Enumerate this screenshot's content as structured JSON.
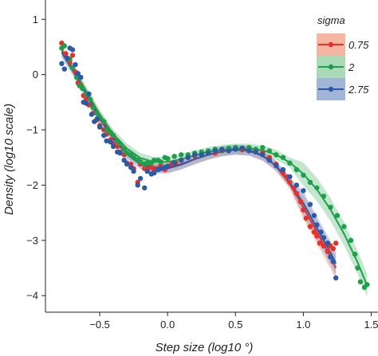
{
  "chart_data": {
    "type": "scatter",
    "xlabel": "Step size (log10 °)",
    "ylabel": "Density (log10 scale)",
    "xlim": [
      -0.9,
      1.55
    ],
    "ylim": [
      -4.3,
      1.35
    ],
    "x_ticks": [
      {
        "value": -0.5,
        "label": "−0.5"
      },
      {
        "value": 0.0,
        "label": "0.0"
      },
      {
        "value": 0.5,
        "label": "0.5"
      },
      {
        "value": 1.0,
        "label": "1.0"
      },
      {
        "value": 1.5,
        "label": "1.5"
      }
    ],
    "y_ticks": [
      {
        "value": 1,
        "label": "1"
      },
      {
        "value": 0,
        "label": "0"
      },
      {
        "value": -1,
        "label": "−1"
      },
      {
        "value": -2,
        "label": "−2"
      },
      {
        "value": -3,
        "label": "−3"
      },
      {
        "value": -4,
        "label": "−4"
      }
    ],
    "grid": false,
    "legend": {
      "title": "sigma",
      "position": "top-right"
    },
    "series": [
      {
        "name": "0.75",
        "color": "#e8302a",
        "band_color": "#f2a48a",
        "points": [
          [
            -0.78,
            0.57
          ],
          [
            -0.75,
            0.38
          ],
          [
            -0.72,
            0.22
          ],
          [
            -0.7,
            0.35
          ],
          [
            -0.68,
            0.05
          ],
          [
            -0.66,
            -0.15
          ],
          [
            -0.64,
            -0.2
          ],
          [
            -0.62,
            -0.38
          ],
          [
            -0.6,
            -0.45
          ],
          [
            -0.58,
            -0.55
          ],
          [
            -0.55,
            -0.7
          ],
          [
            -0.52,
            -0.82
          ],
          [
            -0.5,
            -0.92
          ],
          [
            -0.47,
            -1.0
          ],
          [
            -0.45,
            -1.08
          ],
          [
            -0.42,
            -1.18
          ],
          [
            -0.4,
            -1.25
          ],
          [
            -0.37,
            -1.3
          ],
          [
            -0.35,
            -1.4
          ],
          [
            -0.32,
            -1.45
          ],
          [
            -0.3,
            -1.6
          ],
          [
            -0.27,
            -1.62
          ],
          [
            -0.25,
            -1.7
          ],
          [
            -0.22,
            -1.95
          ],
          [
            -0.2,
            -1.62
          ],
          [
            -0.17,
            -1.7
          ],
          [
            -0.15,
            -1.72
          ],
          [
            -0.12,
            -1.68
          ],
          [
            -0.1,
            -1.75
          ],
          [
            -0.07,
            -1.7
          ],
          [
            -0.05,
            -1.65
          ],
          [
            -0.02,
            -1.72
          ],
          [
            0.0,
            -1.66
          ],
          [
            0.03,
            -1.62
          ],
          [
            0.06,
            -1.6
          ],
          [
            0.1,
            -1.55
          ],
          [
            0.15,
            -1.5
          ],
          [
            0.2,
            -1.47
          ],
          [
            0.25,
            -1.45
          ],
          [
            0.3,
            -1.42
          ],
          [
            0.35,
            -1.42
          ],
          [
            0.4,
            -1.38
          ],
          [
            0.45,
            -1.37
          ],
          [
            0.5,
            -1.35
          ],
          [
            0.55,
            -1.36
          ],
          [
            0.6,
            -1.34
          ],
          [
            0.65,
            -1.38
          ],
          [
            0.7,
            -1.42
          ],
          [
            0.75,
            -1.5
          ],
          [
            0.8,
            -1.62
          ],
          [
            0.85,
            -1.78
          ],
          [
            0.88,
            -1.85
          ],
          [
            0.9,
            -1.95
          ],
          [
            0.93,
            -2.05
          ],
          [
            0.95,
            -2.15
          ],
          [
            0.98,
            -2.3
          ],
          [
            1.0,
            -2.45
          ],
          [
            1.02,
            -2.6
          ],
          [
            1.05,
            -2.75
          ],
          [
            1.08,
            -2.85
          ],
          [
            1.1,
            -2.92
          ],
          [
            1.12,
            -3.05
          ],
          [
            1.15,
            -3.1
          ],
          [
            1.18,
            -3.2
          ],
          [
            1.2,
            -3.1
          ],
          [
            1.22,
            -3.15
          ],
          [
            1.24,
            -3.05
          ]
        ],
        "fit": [
          [
            -0.78,
            0.45
          ],
          [
            -0.7,
            0.12
          ],
          [
            -0.6,
            -0.32
          ],
          [
            -0.5,
            -0.76
          ],
          [
            -0.4,
            -1.12
          ],
          [
            -0.3,
            -1.4
          ],
          [
            -0.2,
            -1.58
          ],
          [
            -0.1,
            -1.67
          ],
          [
            0.0,
            -1.68
          ],
          [
            0.1,
            -1.62
          ],
          [
            0.2,
            -1.53
          ],
          [
            0.3,
            -1.45
          ],
          [
            0.4,
            -1.39
          ],
          [
            0.5,
            -1.36
          ],
          [
            0.6,
            -1.37
          ],
          [
            0.7,
            -1.46
          ],
          [
            0.8,
            -1.66
          ],
          [
            0.9,
            -1.98
          ],
          [
            1.0,
            -2.4
          ],
          [
            1.1,
            -2.85
          ],
          [
            1.2,
            -3.3
          ],
          [
            1.24,
            -3.5
          ]
        ]
      },
      {
        "name": "2",
        "color": "#1ea04a",
        "band_color": "#95d1a5",
        "points": [
          [
            -0.78,
            0.48
          ],
          [
            -0.76,
            0.52
          ],
          [
            -0.74,
            0.3
          ],
          [
            -0.72,
            0.28
          ],
          [
            -0.7,
            0.12
          ],
          [
            -0.67,
            -0.05
          ],
          [
            -0.65,
            -0.2
          ],
          [
            -0.63,
            -0.25
          ],
          [
            -0.6,
            -0.35
          ],
          [
            -0.57,
            -0.45
          ],
          [
            -0.55,
            -0.6
          ],
          [
            -0.52,
            -0.7
          ],
          [
            -0.5,
            -0.78
          ],
          [
            -0.47,
            -0.85
          ],
          [
            -0.45,
            -1.0
          ],
          [
            -0.42,
            -1.05
          ],
          [
            -0.4,
            -1.1
          ],
          [
            -0.37,
            -1.2
          ],
          [
            -0.35,
            -1.25
          ],
          [
            -0.32,
            -1.35
          ],
          [
            -0.3,
            -1.42
          ],
          [
            -0.27,
            -1.45
          ],
          [
            -0.25,
            -1.5
          ],
          [
            -0.22,
            -1.55
          ],
          [
            -0.2,
            -1.58
          ],
          [
            -0.17,
            -1.62
          ],
          [
            -0.15,
            -1.6
          ],
          [
            -0.12,
            -1.6
          ],
          [
            -0.1,
            -1.55
          ],
          [
            -0.07,
            -1.55
          ],
          [
            -0.05,
            -1.58
          ],
          [
            -0.02,
            -1.5
          ],
          [
            0.0,
            -1.52
          ],
          [
            0.05,
            -1.48
          ],
          [
            0.1,
            -1.45
          ],
          [
            0.15,
            -1.45
          ],
          [
            0.2,
            -1.42
          ],
          [
            0.25,
            -1.4
          ],
          [
            0.3,
            -1.38
          ],
          [
            0.35,
            -1.35
          ],
          [
            0.4,
            -1.36
          ],
          [
            0.45,
            -1.33
          ],
          [
            0.5,
            -1.32
          ],
          [
            0.55,
            -1.33
          ],
          [
            0.6,
            -1.32
          ],
          [
            0.65,
            -1.35
          ],
          [
            0.7,
            -1.32
          ],
          [
            0.75,
            -1.38
          ],
          [
            0.8,
            -1.45
          ],
          [
            0.85,
            -1.5
          ],
          [
            0.9,
            -1.6
          ],
          [
            0.95,
            -1.72
          ],
          [
            1.0,
            -1.82
          ],
          [
            1.05,
            -1.95
          ],
          [
            1.1,
            -2.05
          ],
          [
            1.15,
            -2.2
          ],
          [
            1.2,
            -2.4
          ],
          [
            1.25,
            -2.55
          ],
          [
            1.3,
            -2.75
          ],
          [
            1.35,
            -3.0
          ],
          [
            1.38,
            -3.25
          ],
          [
            1.4,
            -3.5
          ],
          [
            1.42,
            -3.75
          ],
          [
            1.45,
            -3.85
          ],
          [
            1.47,
            -3.8
          ]
        ],
        "fit": [
          [
            -0.78,
            0.42
          ],
          [
            -0.7,
            0.12
          ],
          [
            -0.6,
            -0.3
          ],
          [
            -0.5,
            -0.72
          ],
          [
            -0.4,
            -1.08
          ],
          [
            -0.3,
            -1.34
          ],
          [
            -0.2,
            -1.51
          ],
          [
            -0.1,
            -1.58
          ],
          [
            0.0,
            -1.58
          ],
          [
            0.1,
            -1.53
          ],
          [
            0.2,
            -1.46
          ],
          [
            0.3,
            -1.4
          ],
          [
            0.4,
            -1.36
          ],
          [
            0.5,
            -1.34
          ],
          [
            0.6,
            -1.34
          ],
          [
            0.7,
            -1.37
          ],
          [
            0.8,
            -1.45
          ],
          [
            0.9,
            -1.59
          ],
          [
            1.0,
            -1.8
          ],
          [
            1.1,
            -2.08
          ],
          [
            1.2,
            -2.44
          ],
          [
            1.3,
            -2.88
          ],
          [
            1.4,
            -3.4
          ],
          [
            1.47,
            -3.82
          ]
        ]
      },
      {
        "name": "2.75",
        "color": "#2a5aa8",
        "band_color": "#8aa2d0",
        "points": [
          [
            -0.78,
            0.2
          ],
          [
            -0.76,
            0.1
          ],
          [
            -0.74,
            0.3
          ],
          [
            -0.72,
            0.48
          ],
          [
            -0.7,
            0.45
          ],
          [
            -0.68,
            0.18
          ],
          [
            -0.66,
            0.02
          ],
          [
            -0.64,
            -0.05
          ],
          [
            -0.62,
            -0.5
          ],
          [
            -0.6,
            -0.52
          ],
          [
            -0.58,
            -0.35
          ],
          [
            -0.56,
            -0.72
          ],
          [
            -0.54,
            -0.85
          ],
          [
            -0.52,
            -0.8
          ],
          [
            -0.5,
            -0.95
          ],
          [
            -0.47,
            -1.1
          ],
          [
            -0.45,
            -1.2
          ],
          [
            -0.42,
            -1.22
          ],
          [
            -0.4,
            -1.3
          ],
          [
            -0.37,
            -1.4
          ],
          [
            -0.35,
            -1.42
          ],
          [
            -0.32,
            -1.55
          ],
          [
            -0.3,
            -1.62
          ],
          [
            -0.27,
            -1.68
          ],
          [
            -0.25,
            -1.75
          ],
          [
            -0.22,
            -2.0
          ],
          [
            -0.2,
            -1.88
          ],
          [
            -0.17,
            -2.05
          ],
          [
            -0.15,
            -1.75
          ],
          [
            -0.12,
            -1.8
          ],
          [
            -0.1,
            -1.78
          ],
          [
            -0.07,
            -1.72
          ],
          [
            -0.05,
            -1.7
          ],
          [
            -0.02,
            -1.68
          ],
          [
            0.0,
            -1.66
          ],
          [
            0.05,
            -1.6
          ],
          [
            0.1,
            -1.55
          ],
          [
            0.15,
            -1.5
          ],
          [
            0.2,
            -1.45
          ],
          [
            0.25,
            -1.45
          ],
          [
            0.3,
            -1.42
          ],
          [
            0.35,
            -1.38
          ],
          [
            0.4,
            -1.35
          ],
          [
            0.45,
            -1.38
          ],
          [
            0.5,
            -1.35
          ],
          [
            0.55,
            -1.33
          ],
          [
            0.6,
            -1.38
          ],
          [
            0.65,
            -1.4
          ],
          [
            0.7,
            -1.45
          ],
          [
            0.75,
            -1.55
          ],
          [
            0.8,
            -1.65
          ],
          [
            0.85,
            -1.72
          ],
          [
            0.9,
            -1.85
          ],
          [
            0.95,
            -2.0
          ],
          [
            1.0,
            -2.1
          ],
          [
            1.05,
            -2.35
          ],
          [
            1.08,
            -2.55
          ],
          [
            1.1,
            -2.72
          ],
          [
            1.13,
            -2.85
          ],
          [
            1.15,
            -2.95
          ],
          [
            1.18,
            -3.05
          ],
          [
            1.2,
            -3.3
          ],
          [
            1.22,
            -3.38
          ],
          [
            1.24,
            -3.68
          ]
        ],
        "fit": [
          [
            -0.78,
            0.4
          ],
          [
            -0.7,
            0.08
          ],
          [
            -0.6,
            -0.36
          ],
          [
            -0.5,
            -0.8
          ],
          [
            -0.4,
            -1.16
          ],
          [
            -0.3,
            -1.44
          ],
          [
            -0.2,
            -1.62
          ],
          [
            -0.1,
            -1.7
          ],
          [
            0.0,
            -1.7
          ],
          [
            0.1,
            -1.63
          ],
          [
            0.2,
            -1.53
          ],
          [
            0.3,
            -1.45
          ],
          [
            0.4,
            -1.39
          ],
          [
            0.5,
            -1.36
          ],
          [
            0.6,
            -1.38
          ],
          [
            0.7,
            -1.47
          ],
          [
            0.8,
            -1.65
          ],
          [
            0.9,
            -1.95
          ],
          [
            1.0,
            -2.33
          ],
          [
            1.1,
            -2.78
          ],
          [
            1.2,
            -3.22
          ],
          [
            1.24,
            -3.42
          ]
        ]
      }
    ]
  }
}
